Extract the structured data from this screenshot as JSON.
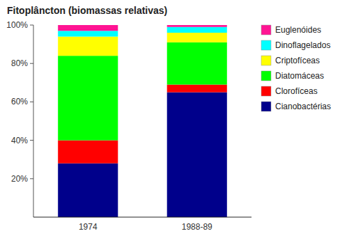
{
  "chart_data": {
    "type": "bar",
    "stacked": true,
    "title": "Fitoplâncton (biomassas relativas)",
    "categories": [
      "1974",
      "1988-89"
    ],
    "series": [
      {
        "name": "Cianobactérias",
        "color": "#00008B",
        "values": [
          28,
          65
        ]
      },
      {
        "name": "Clorofíceas",
        "color": "#FF0000",
        "values": [
          12,
          4
        ]
      },
      {
        "name": "Diatomáceas",
        "color": "#00FF00",
        "values": [
          44,
          22
        ]
      },
      {
        "name": "Criptofíceas",
        "color": "#FFFF00",
        "values": [
          10,
          5
        ]
      },
      {
        "name": "Dinoflagelados",
        "color": "#00FFFF",
        "values": [
          3,
          3
        ]
      },
      {
        "name": "Euglenóides",
        "color": "#FF1493",
        "values": [
          3,
          1
        ]
      }
    ],
    "ylim": [
      0,
      100
    ],
    "yticks": [
      {
        "value": 20,
        "label": "20%"
      },
      {
        "value": 40,
        "label": "40%"
      },
      {
        "value": 60,
        "label": "60%"
      },
      {
        "value": 80,
        "label": "80%"
      },
      {
        "value": 100,
        "label": "100%"
      }
    ],
    "grid": false,
    "legend": "right"
  }
}
